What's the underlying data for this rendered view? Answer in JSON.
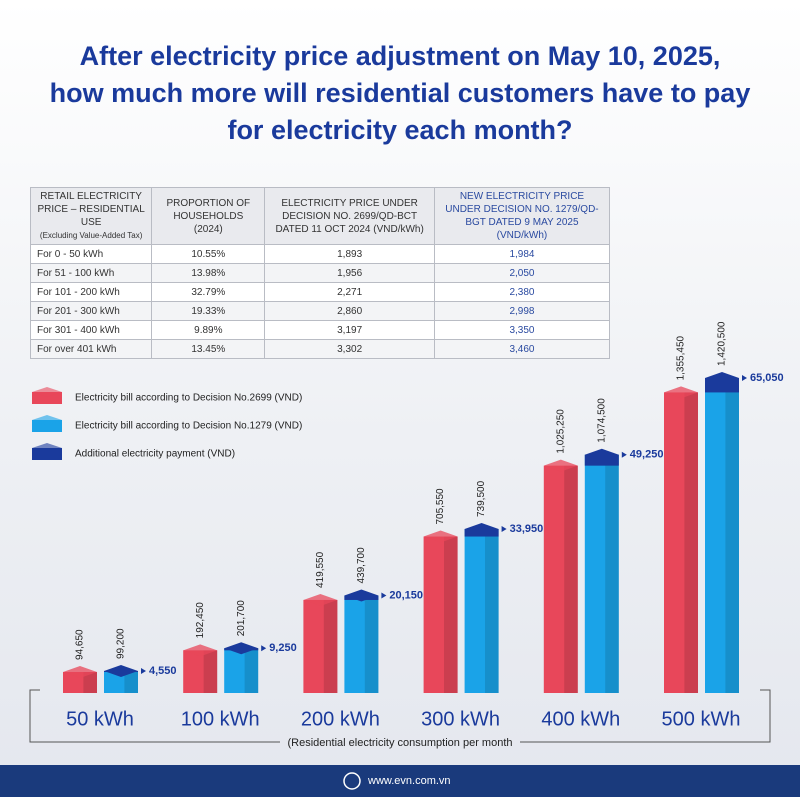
{
  "title": [
    "After electricity price adjustment on May 10, 2025,",
    "how much more will residential customers have to pay",
    "for electricity each month?"
  ],
  "table": {
    "header": [
      "RETAIL ELECTRICITY PRICE – RESIDENTIAL USE",
      "PROPORTION OF HOUSEHOLDS (2024)",
      "ELECTRICITY PRICE UNDER DECISION NO. 2699/QD-BCT DATED 11 OCT 2024 (VND/kWh)",
      "NEW ELECTRICITY PRICE UNDER DECISION NO. 1279/QD-BGT DATED 9 MAY 2025 (VND/kWh)"
    ],
    "header_note": "(Excluding Value-Added Tax)",
    "rows": [
      [
        "For 0 - 50 kWh",
        "10.55%",
        "1,893",
        "1,984"
      ],
      [
        "For 51 - 100 kWh",
        "13.98%",
        "1,956",
        "2,050"
      ],
      [
        "For 101 - 200 kWh",
        "32.79%",
        "2,271",
        "2,380"
      ],
      [
        "For 201 - 300 kWh",
        "19.33%",
        "2,860",
        "2,998"
      ],
      [
        "For 301 - 400 kWh",
        "9.89%",
        "3,197",
        "3,350"
      ],
      [
        "For over 401 kWh",
        "13.45%",
        "3,302",
        "3,460"
      ]
    ]
  },
  "chart_data": {
    "type": "bar",
    "categories": [
      "50 kWh",
      "100 kWh",
      "200 kWh",
      "300 kWh",
      "400 kWh",
      "500 kWh"
    ],
    "x_label": "(Residential electricity consumption per month",
    "series": [
      {
        "name": "Electricity bill according to Decision No.2699 (VND)",
        "color": "#e8475a",
        "values": [
          94650,
          192450,
          419550,
          705550,
          1025250,
          1355450
        ],
        "value_labels": [
          "94,650",
          "192,450",
          "419,550",
          "705,550",
          "1,025,250",
          "1,355,450"
        ]
      },
      {
        "name": "Electricity bill according to Decision No.1279 (VND)",
        "color": "#1aa3e8",
        "values": [
          99200,
          201700,
          439700,
          739500,
          1074500,
          1420500
        ],
        "value_labels": [
          "99,200",
          "201,700",
          "439,700",
          "739,500",
          "1,074,500",
          "1,420,500"
        ]
      },
      {
        "name": "Additional electricity payment (VND)",
        "color": "#1a3a9c",
        "values": [
          4550,
          9250,
          20150,
          33950,
          49250,
          65050
        ],
        "value_labels": [
          "4,550",
          "9,250",
          "20,150",
          "33,950",
          "49,250",
          "65,050"
        ]
      }
    ]
  },
  "footer": "www.evn.com.vn"
}
